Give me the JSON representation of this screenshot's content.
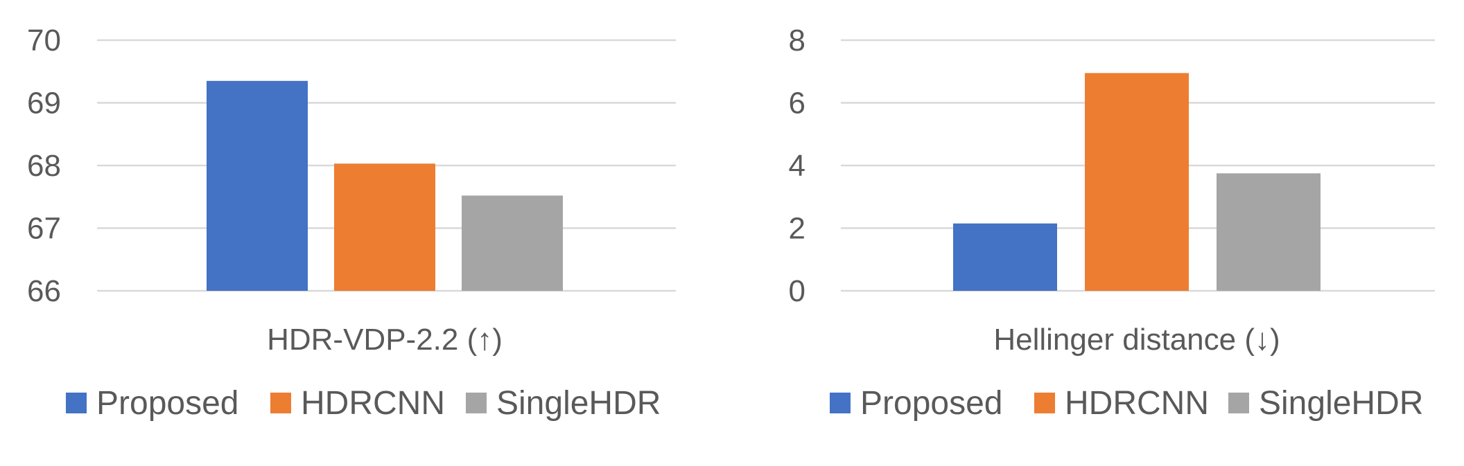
{
  "chart_data": [
    {
      "type": "bar",
      "xlabel": "HDR-VDP-2.2 (↑)",
      "ylabel": "",
      "ylim": [
        66,
        70
      ],
      "yticks": [
        "66",
        "67",
        "68",
        "69",
        "70"
      ],
      "grid": true,
      "legend_position": "bottom",
      "series": [
        {
          "name": "Proposed",
          "color": "#4472C4",
          "value": 69.35
        },
        {
          "name": "HDRCNN",
          "color": "#ED7D31",
          "value": 68.03
        },
        {
          "name": "SingleHDR",
          "color": "#A5A5A5",
          "value": 67.52
        }
      ]
    },
    {
      "type": "bar",
      "xlabel": "Hellinger distance (↓)",
      "ylabel": "",
      "ylim": [
        0,
        8
      ],
      "yticks": [
        "0",
        "2",
        "4",
        "6",
        "8"
      ],
      "grid": true,
      "legend_position": "bottom",
      "series": [
        {
          "name": "Proposed",
          "color": "#4472C4",
          "value": 2.15
        },
        {
          "name": "HDRCNN",
          "color": "#ED7D31",
          "value": 6.95
        },
        {
          "name": "SingleHDR",
          "color": "#A5A5A5",
          "value": 3.75
        }
      ]
    }
  ],
  "style": {
    "grid_color": "#D9D9D9",
    "text_color": "#595959"
  }
}
